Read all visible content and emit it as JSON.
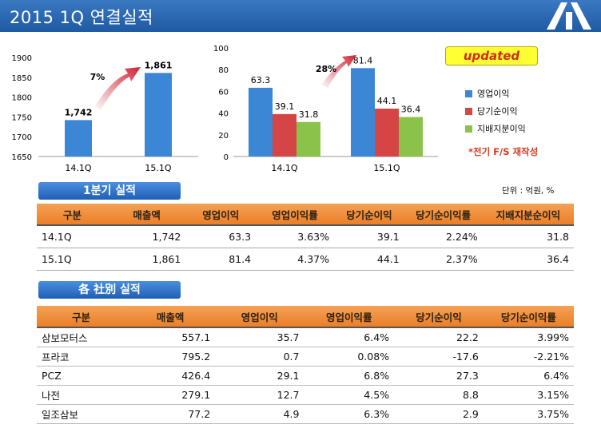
{
  "title": "2015 1Q 연결실적",
  "colors": {
    "op": "#3c86d6",
    "net": "#d64545",
    "ctrl": "#8bc34a",
    "accent": "#ea7f28"
  },
  "chart_data": [
    {
      "type": "bar",
      "title": "매출액",
      "categories": [
        "14.1Q",
        "15.1Q"
      ],
      "values": [
        1742,
        1861
      ],
      "value_labels": [
        "1,742",
        "1,861"
      ],
      "yticks": [
        "1900",
        "1850",
        "1800",
        "1750",
        "1700",
        "1650"
      ],
      "ylim": [
        1650,
        1900
      ],
      "growth_label": "7%"
    },
    {
      "type": "bar",
      "categories": [
        "14.1Q",
        "15.1Q"
      ],
      "series": [
        {
          "name": "영업이익",
          "values": [
            63.3,
            81.4
          ]
        },
        {
          "name": "당기순이익",
          "values": [
            39.1,
            44.1
          ]
        },
        {
          "name": "지배지분이익",
          "values": [
            31.8,
            36.4
          ]
        }
      ],
      "yticks": [
        "100",
        "80",
        "60",
        "40",
        "20",
        "0"
      ],
      "ylim": [
        0,
        100
      ],
      "growth_label": "28%"
    }
  ],
  "badge": "updated",
  "legend": [
    "영업이익",
    "당기순이익",
    "지배지분이익"
  ],
  "note": "*전기 F/S 재작성",
  "section1": "1분기 실적",
  "unit": "단위 : 억원, %",
  "table1": {
    "headers": [
      "구분",
      "매출액",
      "영업이익",
      "영업이익률",
      "당기순이익",
      "당기순이익률",
      "지배지분순이익"
    ],
    "rows": [
      [
        "14.1Q",
        "1,742",
        "63.3",
        "3.63%",
        "39.1",
        "2.24%",
        "31.8"
      ],
      [
        "15.1Q",
        "1,861",
        "81.4",
        "4.37%",
        "44.1",
        "2.37%",
        "36.4"
      ]
    ]
  },
  "section2": "各 社別 실적",
  "table2": {
    "headers": [
      "구분",
      "매출액",
      "영업이익",
      "영업이익률",
      "당기순이익",
      "당기순이익률"
    ],
    "rows": [
      [
        "삼보모터스",
        "557.1",
        "35.7",
        "6.4%",
        "22.2",
        "3.99%"
      ],
      [
        "프라코",
        "795.2",
        "0.7",
        "0.08%",
        "-17.6",
        "-2.21%"
      ],
      [
        "PCZ",
        "426.4",
        "29.1",
        "6.8%",
        "27.3",
        "6.4%"
      ],
      [
        "나전",
        "279.1",
        "12.7",
        "4.5%",
        "8.8",
        "3.15%"
      ],
      [
        "일조삼보",
        "77.2",
        "4.9",
        "6.3%",
        "2.9",
        "3.75%"
      ]
    ]
  }
}
